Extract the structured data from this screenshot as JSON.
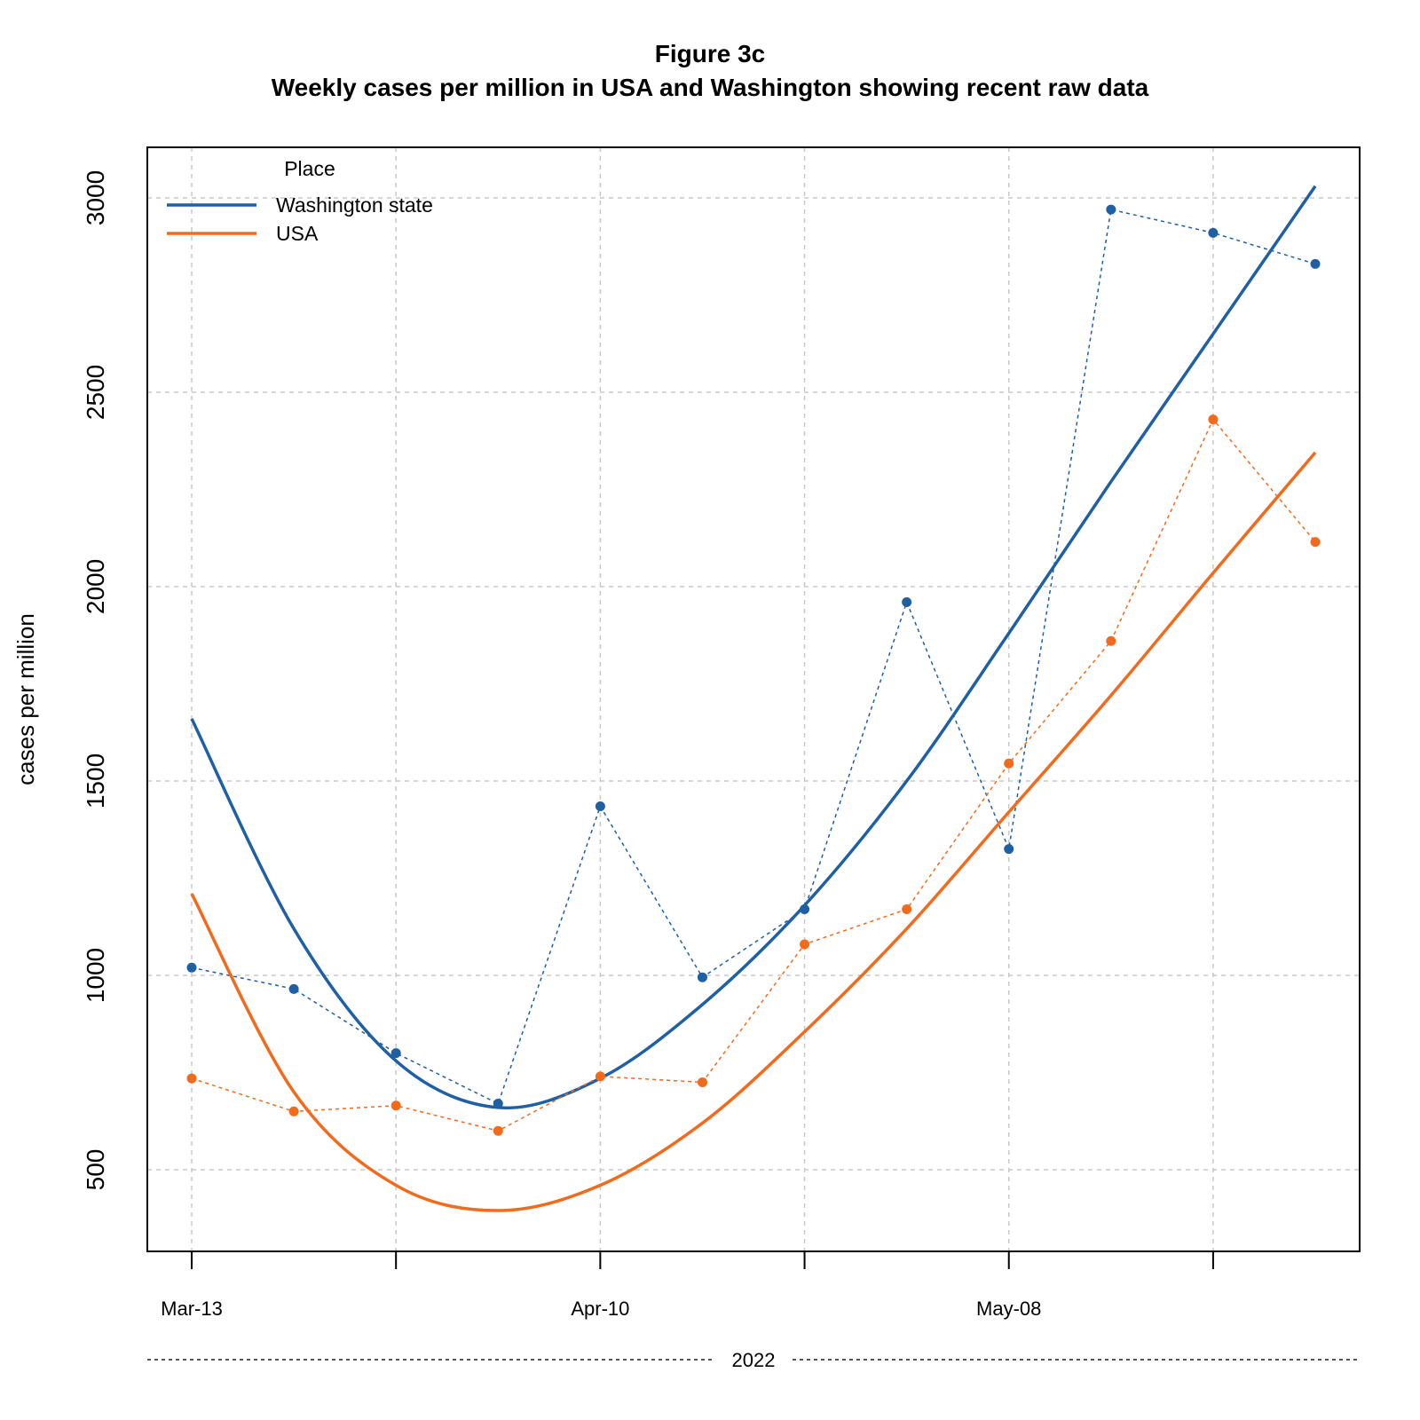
{
  "chart_data": {
    "type": "line",
    "title": "Figure 3c",
    "subtitle": "Weekly cases per million in USA and Washington showing recent raw data",
    "ylabel": "cases per million",
    "xlabel": "2022",
    "ylim": [
      290,
      3130
    ],
    "yticks": [
      500,
      1000,
      1500,
      2000,
      2500,
      3000
    ],
    "x_dates": [
      "2022-03-13",
      "2022-03-20",
      "2022-03-27",
      "2022-04-03",
      "2022-04-10",
      "2022-04-17",
      "2022-04-24",
      "2022-05-01",
      "2022-05-08",
      "2022-05-15",
      "2022-05-22",
      "2022-05-29"
    ],
    "x_tick_dates": [
      "2022-03-13",
      "2022-03-27",
      "2022-04-10",
      "2022-04-24",
      "2022-05-08",
      "2022-05-22"
    ],
    "x_tick_labels": [
      "Mar-13",
      "",
      "Apr-10",
      "",
      "May-08",
      ""
    ],
    "grid": true,
    "legend": {
      "title": "Place",
      "position": "top-left",
      "entries": [
        "Washington state",
        "USA"
      ]
    },
    "series": [
      {
        "name": "Washington state",
        "color": "#1f5fa3",
        "raw": [
          1020,
          965,
          800,
          670,
          1435,
          995,
          1170,
          1960,
          1325,
          2970,
          2910,
          2830
        ],
        "trend": [
          1660,
          1120,
          780,
          660,
          735,
          925,
          1180,
          1500,
          1880,
          2270,
          2650,
          3030
        ]
      },
      {
        "name": "USA",
        "color": "#f26a1b",
        "raw": [
          735,
          650,
          665,
          600,
          740,
          725,
          1080,
          1170,
          1545,
          1860,
          2430,
          2115
        ],
        "trend": [
          1210,
          700,
          460,
          395,
          460,
          620,
          855,
          1120,
          1420,
          1720,
          2035,
          2345
        ]
      }
    ]
  }
}
